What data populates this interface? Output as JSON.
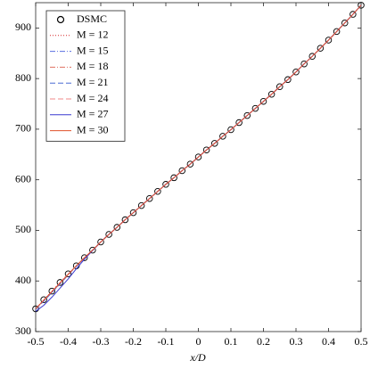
{
  "chart_data": {
    "type": "line",
    "xlabel": "x/D",
    "xlim": [
      -0.5,
      0.5
    ],
    "xticks": [
      -0.5,
      -0.4,
      -0.3,
      -0.2,
      -0.1,
      0,
      0.1,
      0.2,
      0.3,
      0.4,
      0.5
    ],
    "ylim": [
      300,
      950
    ],
    "yticks": [
      300,
      400,
      500,
      600,
      700,
      800,
      900
    ],
    "legend": "upper left",
    "x": [
      -0.5,
      -0.475,
      -0.45,
      -0.425,
      -0.4,
      -0.375,
      -0.35,
      -0.325,
      -0.3,
      -0.275,
      -0.25,
      -0.225,
      -0.2,
      -0.175,
      -0.15,
      -0.125,
      -0.1,
      -0.075,
      -0.05,
      -0.025,
      0,
      0.025,
      0.05,
      0.075,
      0.1,
      0.125,
      0.15,
      0.175,
      0.2,
      0.225,
      0.25,
      0.275,
      0.3,
      0.325,
      0.35,
      0.375,
      0.4,
      0.425,
      0.45,
      0.475,
      0.5
    ],
    "series": [
      {
        "name": "DSMC",
        "color": "#000000",
        "marker": "circle",
        "values": [
          345,
          363,
          380,
          397,
          414,
          430,
          446,
          461,
          477,
          492,
          506,
          521,
          535,
          549,
          563,
          577,
          591,
          604,
          618,
          631,
          645,
          659,
          672,
          686,
          699,
          713,
          727,
          741,
          755,
          769,
          784,
          798,
          813,
          829,
          844,
          860,
          876,
          893,
          910,
          927,
          945
        ]
      },
      {
        "name": "M = 12",
        "color": "#d62728",
        "style": "dotted",
        "values": [
          345,
          363,
          380,
          397,
          414,
          430,
          446,
          461,
          477,
          492,
          506,
          521,
          535,
          549,
          563,
          577,
          591,
          604,
          618,
          631,
          645,
          659,
          672,
          686,
          699,
          713,
          727,
          741,
          755,
          769,
          784,
          798,
          813,
          829,
          844,
          860,
          876,
          893,
          910,
          927,
          945
        ]
      },
      {
        "name": "M = 15",
        "color": "#5a6fe0",
        "style": "dashdot",
        "values": [
          344,
          361,
          378,
          395,
          413,
          429,
          445,
          461,
          477,
          492,
          506,
          521,
          535,
          549,
          563,
          577,
          591,
          604,
          618,
          631,
          645,
          659,
          672,
          686,
          699,
          713,
          727,
          741,
          755,
          769,
          784,
          798,
          813,
          829,
          844,
          860,
          876,
          893,
          910,
          927,
          945
        ]
      },
      {
        "name": "M = 18",
        "color": "#e07060",
        "style": "dashdot",
        "values": [
          345,
          362,
          379,
          396,
          413,
          430,
          446,
          461,
          477,
          492,
          506,
          521,
          535,
          549,
          563,
          577,
          591,
          604,
          618,
          631,
          645,
          659,
          672,
          686,
          699,
          713,
          727,
          741,
          755,
          769,
          784,
          798,
          813,
          829,
          844,
          860,
          876,
          893,
          910,
          927,
          945
        ]
      },
      {
        "name": "M = 21",
        "color": "#4a6cd4",
        "style": "dashed",
        "values": [
          344,
          360,
          377,
          394,
          412,
          429,
          445,
          461,
          477,
          492,
          506,
          521,
          535,
          549,
          563,
          577,
          591,
          604,
          618,
          631,
          645,
          659,
          672,
          686,
          699,
          713,
          727,
          741,
          755,
          769,
          784,
          798,
          813,
          829,
          844,
          860,
          876,
          893,
          910,
          927,
          945
        ]
      },
      {
        "name": "M = 24",
        "color": "#f08a8a",
        "style": "dashed",
        "values": [
          345,
          362,
          379,
          396,
          413,
          430,
          446,
          461,
          477,
          492,
          506,
          521,
          535,
          549,
          563,
          577,
          591,
          604,
          618,
          631,
          645,
          659,
          672,
          686,
          699,
          713,
          727,
          741,
          755,
          769,
          784,
          798,
          813,
          829,
          844,
          860,
          876,
          893,
          910,
          927,
          945
        ]
      },
      {
        "name": "M = 27",
        "color": "#3a3ad0",
        "style": "solid",
        "values": [
          340,
          352,
          368,
          386,
          404,
          424,
          443,
          460,
          477,
          492,
          506,
          521,
          535,
          549,
          563,
          577,
          591,
          604,
          618,
          631,
          645,
          659,
          672,
          686,
          699,
          713,
          727,
          741,
          755,
          769,
          784,
          798,
          813,
          829,
          844,
          860,
          876,
          893,
          910,
          927,
          945
        ]
      },
      {
        "name": "M = 30",
        "color": "#e0502a",
        "style": "solid",
        "values": [
          345,
          362,
          379,
          396,
          413,
          430,
          446,
          461,
          477,
          492,
          506,
          521,
          535,
          549,
          563,
          577,
          591,
          604,
          618,
          631,
          645,
          659,
          672,
          686,
          699,
          713,
          727,
          741,
          755,
          769,
          784,
          798,
          813,
          829,
          844,
          860,
          876,
          893,
          910,
          927,
          945
        ]
      }
    ]
  }
}
